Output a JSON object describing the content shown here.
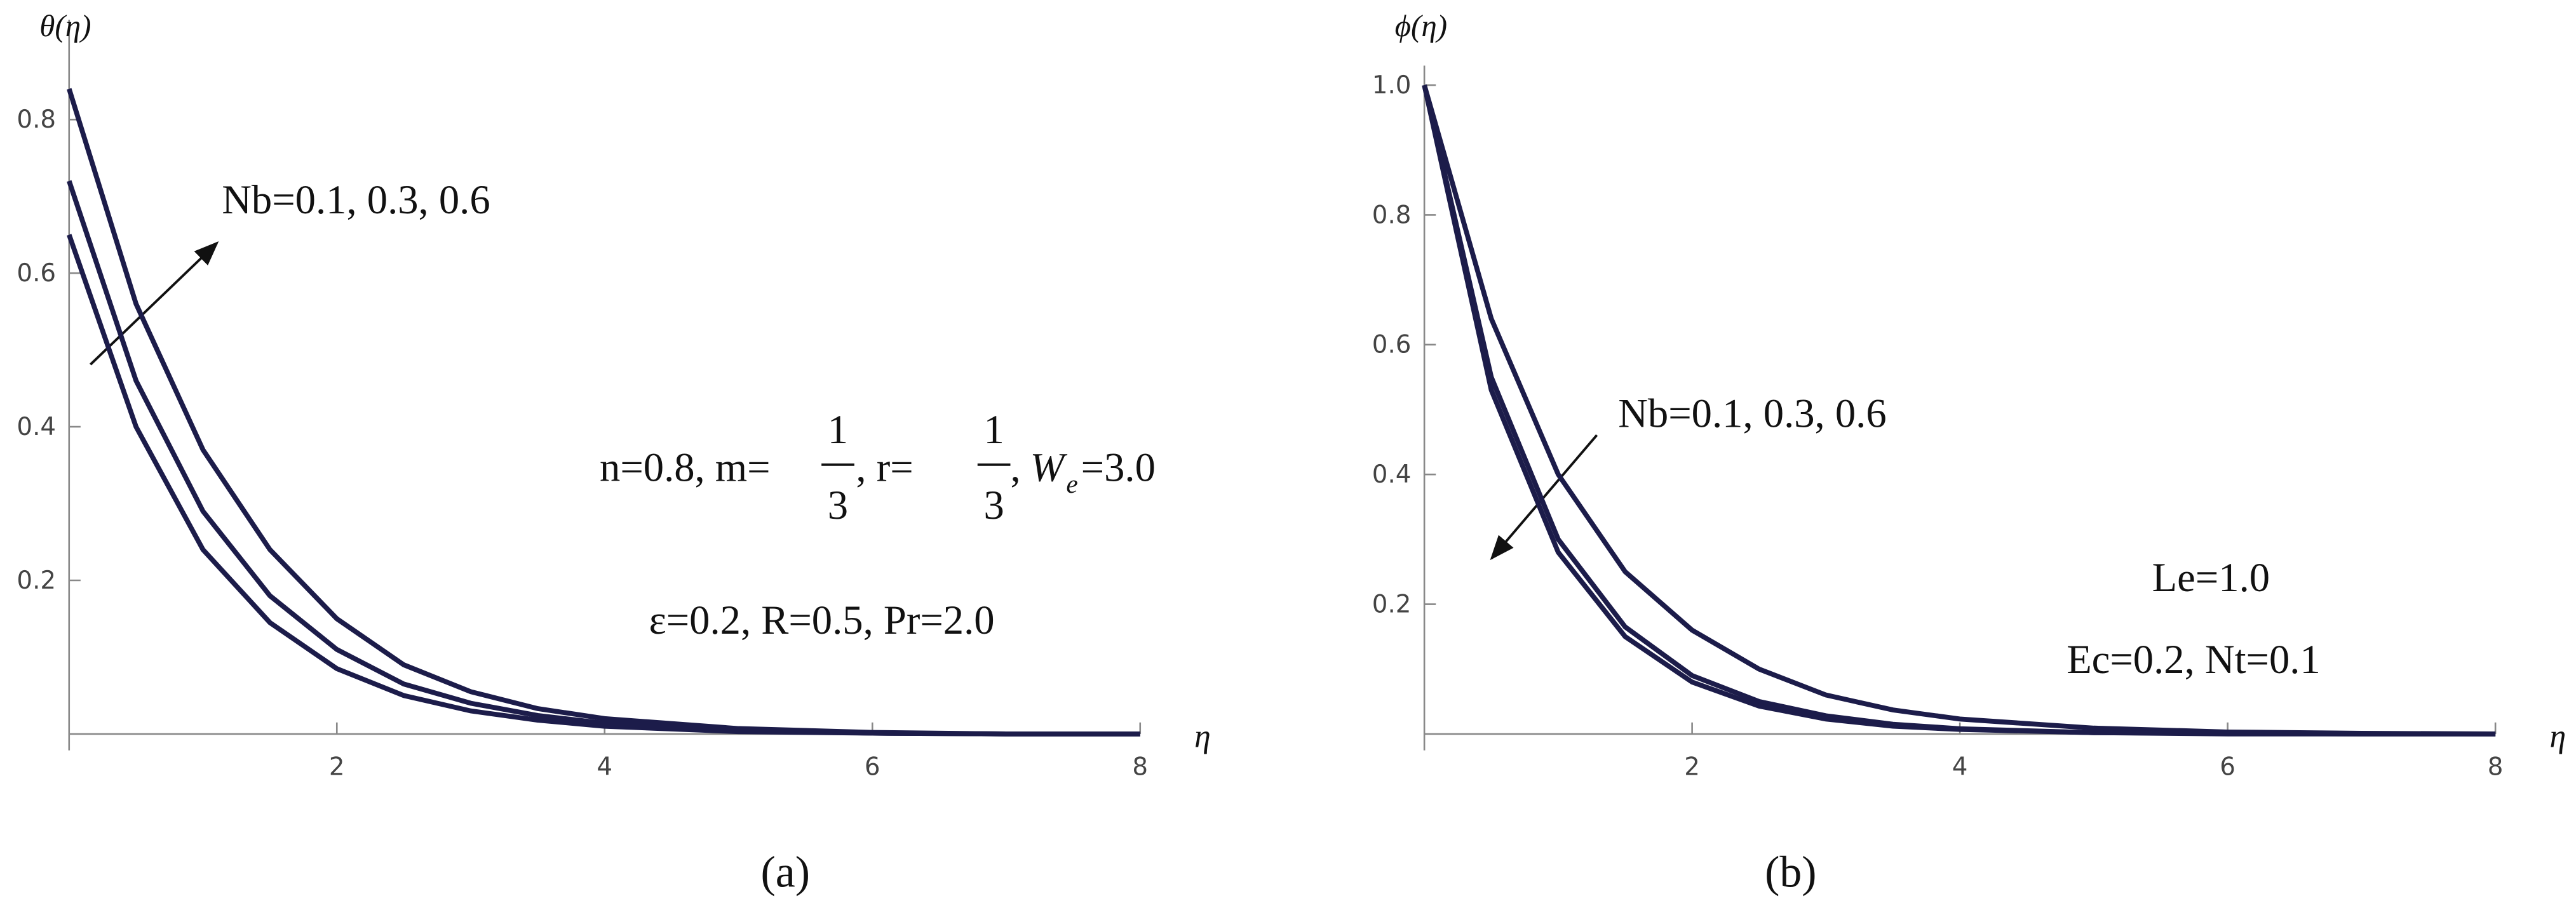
{
  "chart_data": [
    {
      "type": "line",
      "caption": "(a)",
      "y_label": "θ(η)",
      "x_label": "η",
      "annotations": [
        "Nb=0.1, 0.3, 0.6",
        "n=0.8, m=",
        "1",
        "3",
        ", r=",
        "1",
        "3",
        ", ",
        "W",
        "e",
        "=3.0",
        "ε=0.2, R=0.5, Pr=2.0"
      ],
      "x": [
        0,
        0.5,
        1,
        1.5,
        2,
        2.5,
        3,
        3.5,
        4,
        5,
        6,
        7,
        8
      ],
      "series": [
        {
          "color": "#1c1c4a",
          "values": [
            0.84,
            0.56,
            0.37,
            0.24,
            0.15,
            0.09,
            0.055,
            0.033,
            0.02,
            0.007,
            0.002,
            0,
            0
          ]
        },
        {
          "color": "#1c1c4a",
          "values": [
            0.72,
            0.46,
            0.29,
            0.18,
            0.11,
            0.065,
            0.04,
            0.024,
            0.014,
            0.005,
            0.001,
            0,
            0
          ]
        },
        {
          "color": "#1c1c4a",
          "values": [
            0.65,
            0.4,
            0.24,
            0.145,
            0.085,
            0.05,
            0.03,
            0.018,
            0.01,
            0.003,
            0.001,
            0,
            0
          ]
        }
      ],
      "xlim": [
        0,
        8
      ],
      "ylim": [
        0,
        0.93
      ],
      "xticks": [
        2,
        4,
        6,
        8
      ],
      "yticks": [
        0.2,
        0.4,
        0.6,
        0.8
      ]
    },
    {
      "type": "line",
      "caption": "(b)",
      "y_label": "ϕ(η)",
      "x_label": "η",
      "annotations": [
        "Nb=0.1, 0.3, 0.6",
        "Le=1.0",
        "Ec=0.2, Nt=0.1"
      ],
      "x": [
        0,
        0.5,
        1,
        1.5,
        2,
        2.5,
        3,
        3.5,
        4,
        5,
        6,
        7,
        8
      ],
      "series": [
        {
          "color": "#1c1c4a",
          "values": [
            1.0,
            0.64,
            0.4,
            0.25,
            0.16,
            0.1,
            0.06,
            0.037,
            0.023,
            0.009,
            0.003,
            0.001,
            0
          ]
        },
        {
          "color": "#1c1c4a",
          "values": [
            1.0,
            0.55,
            0.3,
            0.165,
            0.09,
            0.05,
            0.028,
            0.015,
            0.008,
            0.002,
            0.001,
            0,
            0
          ]
        },
        {
          "color": "#1c1c4a",
          "values": [
            1.0,
            0.53,
            0.28,
            0.15,
            0.08,
            0.043,
            0.023,
            0.012,
            0.007,
            0.002,
            0,
            0,
            0
          ]
        }
      ],
      "xlim": [
        0,
        8
      ],
      "ylim": [
        0,
        1.03
      ],
      "xticks": [
        2,
        4,
        6,
        8
      ],
      "yticks": [
        0.2,
        0.4,
        0.6,
        0.8,
        {
          "value": 1,
          "label": "1.0"
        }
      ]
    }
  ]
}
